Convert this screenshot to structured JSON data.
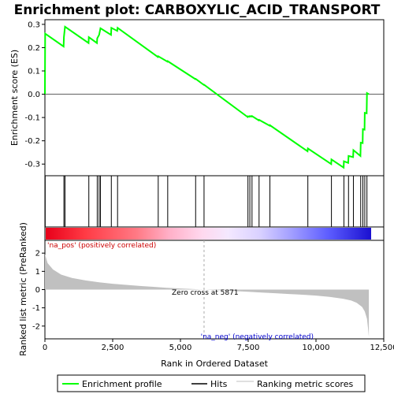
{
  "chart_data": {
    "type": "line",
    "title": "Enrichment plot: CARBOXYLIC_ACID_TRANSPORT",
    "xlabel": "Rank in Ordered Dataset",
    "ylabel_top": "Enrichment score (ES)",
    "ylabel_bottom": "Ranked list metric (PreRanked)",
    "xlim": [
      0,
      12500
    ],
    "ylim_top": [
      -0.35,
      0.32
    ],
    "ylim_bottom": [
      -2.7,
      2.7
    ],
    "x_ticks": [
      0,
      2500,
      5000,
      7500,
      10000,
      12500
    ],
    "x_tick_labels": [
      "0",
      "2,500",
      "5,000",
      "7,500",
      "10,000",
      "12,500"
    ],
    "y_ticks_top": [
      -0.3,
      -0.2,
      -0.1,
      0.0,
      0.1,
      0.2,
      0.3
    ],
    "y_tick_labels_top": [
      "-0.3",
      "-0.2",
      "-0.1",
      "0.0",
      "0.1",
      "0.2",
      "0.3"
    ],
    "y_ticks_bottom": [
      -2,
      -1,
      0,
      1,
      2
    ],
    "y_tick_labels_bottom": [
      "-2",
      "-1",
      "0",
      "1",
      "2"
    ],
    "zero_cross_rank": 5871,
    "zero_cross_label": "Zero cross at 5871",
    "pos_label": "'na_pos' (positively correlated)",
    "neg_label": "'na_neg' (negatively correlated)",
    "n_genes": 11950,
    "hits": [
      10,
      700,
      740,
      1620,
      1930,
      2000,
      2050,
      2450,
      2680,
      4180,
      4530,
      5560,
      5870,
      7490,
      7560,
      7640,
      7900,
      8300,
      9700,
      10570,
      11030,
      11200,
      11380,
      11650,
      11730,
      11800,
      11880
    ],
    "es_curve": [
      [
        0,
        0.0
      ],
      [
        10,
        0.26
      ],
      [
        690,
        0.205
      ],
      [
        700,
        0.245
      ],
      [
        740,
        0.29
      ],
      [
        1610,
        0.22
      ],
      [
        1620,
        0.245
      ],
      [
        1920,
        0.22
      ],
      [
        1930,
        0.24
      ],
      [
        2000,
        0.255
      ],
      [
        2050,
        0.283
      ],
      [
        2440,
        0.255
      ],
      [
        2450,
        0.285
      ],
      [
        2670,
        0.272
      ],
      [
        2680,
        0.285
      ],
      [
        4170,
        0.16
      ],
      [
        4180,
        0.163
      ],
      [
        4520,
        0.14
      ],
      [
        4530,
        0.142
      ],
      [
        5550,
        0.065
      ],
      [
        5560,
        0.066
      ],
      [
        5860,
        0.04
      ],
      [
        5870,
        0.041
      ],
      [
        7480,
        -0.098
      ],
      [
        7490,
        -0.095
      ],
      [
        7550,
        -0.097
      ],
      [
        7560,
        -0.094
      ],
      [
        7630,
        -0.096
      ],
      [
        7640,
        -0.094
      ],
      [
        7890,
        -0.112
      ],
      [
        7900,
        -0.11
      ],
      [
        8290,
        -0.135
      ],
      [
        8300,
        -0.133
      ],
      [
        9690,
        -0.245
      ],
      [
        9700,
        -0.233
      ],
      [
        10560,
        -0.3
      ],
      [
        10570,
        -0.28
      ],
      [
        11020,
        -0.315
      ],
      [
        11030,
        -0.288
      ],
      [
        11190,
        -0.295
      ],
      [
        11200,
        -0.265
      ],
      [
        11370,
        -0.27
      ],
      [
        11380,
        -0.24
      ],
      [
        11640,
        -0.265
      ],
      [
        11650,
        -0.208
      ],
      [
        11720,
        -0.21
      ],
      [
        11730,
        -0.15
      ],
      [
        11790,
        -0.152
      ],
      [
        11800,
        -0.08
      ],
      [
        11870,
        -0.082
      ],
      [
        11880,
        0.005
      ],
      [
        11950,
        0.0
      ]
    ],
    "metric_curve": [
      [
        0,
        1.95
      ],
      [
        100,
        1.45
      ],
      [
        300,
        1.1
      ],
      [
        600,
        0.82
      ],
      [
        1000,
        0.64
      ],
      [
        1500,
        0.5
      ],
      [
        2000,
        0.4
      ],
      [
        2500,
        0.32
      ],
      [
        3000,
        0.26
      ],
      [
        3500,
        0.2
      ],
      [
        4000,
        0.15
      ],
      [
        4500,
        0.1
      ],
      [
        5000,
        0.06
      ],
      [
        5500,
        0.025
      ],
      [
        5871,
        0.0
      ],
      [
        6500,
        -0.04
      ],
      [
        7000,
        -0.08
      ],
      [
        7500,
        -0.12
      ],
      [
        8000,
        -0.16
      ],
      [
        8500,
        -0.2
      ],
      [
        9000,
        -0.24
      ],
      [
        9500,
        -0.28
      ],
      [
        10000,
        -0.33
      ],
      [
        10500,
        -0.4
      ],
      [
        11000,
        -0.5
      ],
      [
        11300,
        -0.6
      ],
      [
        11500,
        -0.72
      ],
      [
        11700,
        -0.95
      ],
      [
        11800,
        -1.2
      ],
      [
        11880,
        -1.6
      ],
      [
        11920,
        -2.1
      ],
      [
        11950,
        -2.6
      ]
    ],
    "legend": [
      {
        "label": "Enrichment profile",
        "color": "#00ff00"
      },
      {
        "label": "Hits",
        "color": "#000000"
      },
      {
        "label": "Ranking metric scores",
        "color": "#c0c0c0"
      }
    ],
    "colors": {
      "es_line": "#00ff00",
      "hits": "#000000",
      "metric_fill": "#c0c0c0",
      "pos_text": "#cc0000",
      "neg_text": "#0000cc",
      "zero_line": "#aaaaaa"
    }
  }
}
